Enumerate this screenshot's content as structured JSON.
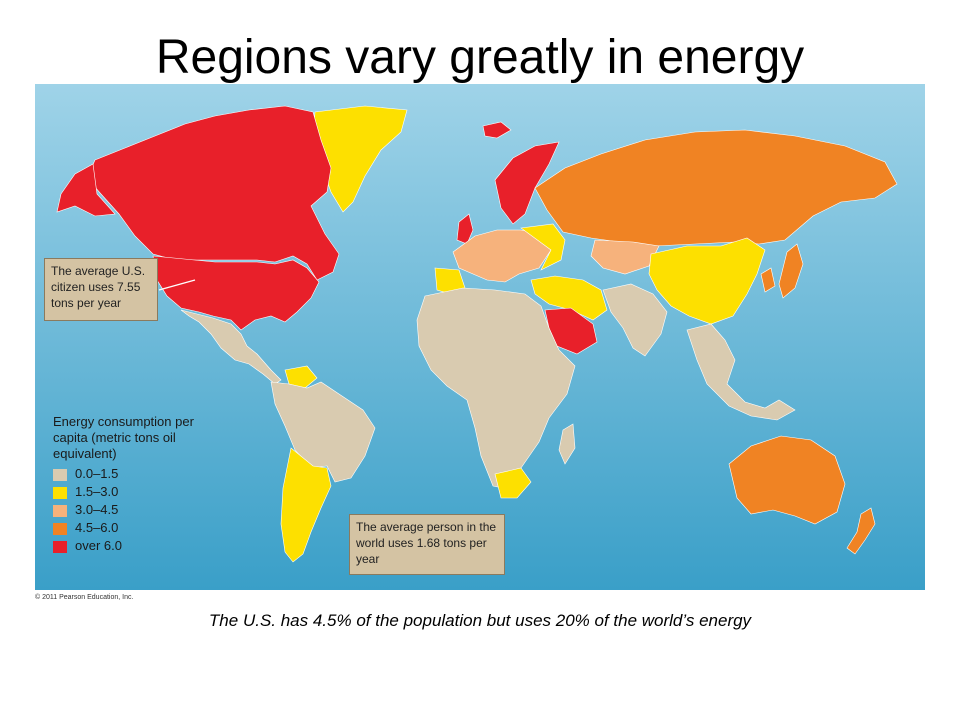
{
  "slide": {
    "title": "Regions vary greatly in energy",
    "caption": "The U.S. has 4.5% of the population but uses 20% of the world’s energy",
    "copyright": "© 2011 Pearson Education, Inc."
  },
  "map": {
    "callout_us": "The average U.S. citizen uses 7.55 tons per year",
    "callout_world": "The average person in the world uses 1.68 tons per year",
    "legend": {
      "title": "Energy consumption per capita (metric tons oil equivalent)",
      "items": [
        {
          "label": "0.0–1.5",
          "color": "#d9cbb0"
        },
        {
          "label": "1.5–3.0",
          "color": "#fde000"
        },
        {
          "label": "3.0–4.5",
          "color": "#f6b27c"
        },
        {
          "label": "4.5–6.0",
          "color": "#f08323"
        },
        {
          "label": "over 6.0",
          "color": "#e8202a"
        }
      ]
    },
    "colors": {
      "ocean_top": "#9fd3e8",
      "ocean_bottom": "#3a9fc8",
      "low": "#d9cbb0",
      "low_mid": "#fde000",
      "mid": "#f6b27c",
      "high": "#f08323",
      "very_high": "#e8202a"
    }
  }
}
